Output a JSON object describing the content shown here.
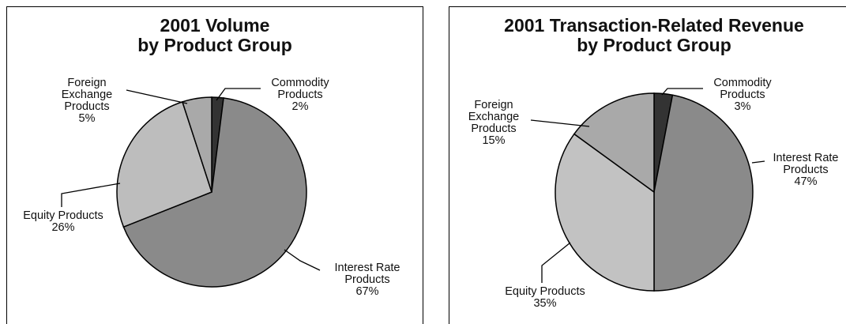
{
  "chart_data": [
    {
      "type": "pie",
      "title": "2001 Volume\nby Product Group",
      "categories": [
        "Commodity\nProducts",
        "Interest Rate\nProducts",
        "Equity Products",
        "Foreign\nExchange\nProducts"
      ],
      "values": [
        2,
        67,
        26,
        5
      ],
      "value_labels": [
        "2%",
        "67%",
        "26%",
        "5%"
      ],
      "colors": [
        "#333333",
        "#8a8a8a",
        "#bdbdbd",
        "#a9a9a9"
      ]
    },
    {
      "type": "pie",
      "title": "2001 Transaction-Related Revenue\nby Product Group",
      "categories": [
        "Commodity\nProducts",
        "Interest Rate\nProducts",
        "Equity Products",
        "Foreign\nExchange\nProducts"
      ],
      "values": [
        3,
        47,
        35,
        15
      ],
      "value_labels": [
        "3%",
        "47%",
        "35%",
        "15%"
      ],
      "colors": [
        "#333333",
        "#8a8a8a",
        "#c2c2c2",
        "#a9a9a9"
      ]
    }
  ]
}
